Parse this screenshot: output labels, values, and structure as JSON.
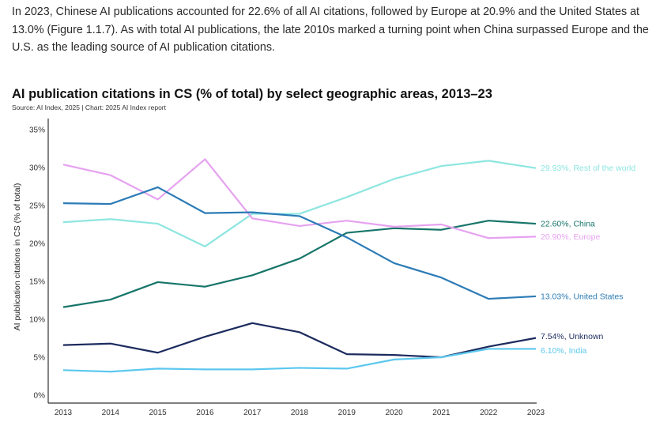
{
  "intro_text": "In 2023, Chinese AI publications accounted for 22.6% of all AI citations, followed by Europe at 20.9% and the United States at 13.0% (Figure 1.1.7). As with total AI publications, the late 2010s marked a turning point when China surpassed Europe and the U.S. as the leading source of AI publication citations.",
  "chart_data": {
    "type": "line",
    "title": "AI publication citations in CS (% of total) by select geographic areas, 2013–23",
    "source": "Source: AI Index, 2025 | Chart: 2025 AI Index report",
    "xlabel": "",
    "ylabel": "AI publication citations in CS (% of total)",
    "x": [
      2013,
      2014,
      2015,
      2016,
      2017,
      2018,
      2019,
      2020,
      2021,
      2022,
      2023
    ],
    "ylim": [
      0,
      35
    ],
    "yticks": [
      0,
      5,
      10,
      15,
      20,
      25,
      30,
      35
    ],
    "ytick_labels": [
      "0%",
      "5%",
      "10%",
      "15%",
      "20%",
      "25%",
      "30%",
      "35%"
    ],
    "grid": false,
    "legend": "end-of-line labels",
    "series": [
      {
        "name": "Rest of the world",
        "end_label": "29.93%, Rest of the world",
        "color": "#8ee6e0",
        "values": [
          22.8,
          23.2,
          22.6,
          19.6,
          23.9,
          23.9,
          26.1,
          28.5,
          30.2,
          30.9,
          29.93
        ]
      },
      {
        "name": "China",
        "end_label": "22.60%, China",
        "color": "#17756a",
        "values": [
          11.6,
          12.6,
          14.9,
          14.3,
          15.8,
          18.0,
          21.4,
          22.0,
          21.8,
          23.0,
          22.6
        ]
      },
      {
        "name": "Europe",
        "end_label": "20.90%, Europe",
        "color": "#e6a2f0",
        "values": [
          30.4,
          29.0,
          25.8,
          31.1,
          23.3,
          22.3,
          23.0,
          22.2,
          22.5,
          20.7,
          20.9
        ]
      },
      {
        "name": "United States",
        "end_label": "13.03%, United States",
        "color": "#2b7bb6",
        "values": [
          25.3,
          25.2,
          27.4,
          24.0,
          24.1,
          23.6,
          20.8,
          17.4,
          15.5,
          12.7,
          13.03
        ]
      },
      {
        "name": "Unknown",
        "end_label": "7.54%, Unknown",
        "color": "#1c2b5e",
        "values": [
          6.6,
          6.8,
          5.6,
          7.7,
          9.5,
          8.3,
          5.4,
          5.3,
          5.0,
          6.4,
          7.54
        ]
      },
      {
        "name": "India",
        "end_label": "6.10%, India",
        "color": "#5cc8ef",
        "values": [
          3.3,
          3.1,
          3.5,
          3.4,
          3.4,
          3.6,
          3.5,
          4.7,
          5.0,
          6.1,
          6.1
        ]
      }
    ]
  }
}
